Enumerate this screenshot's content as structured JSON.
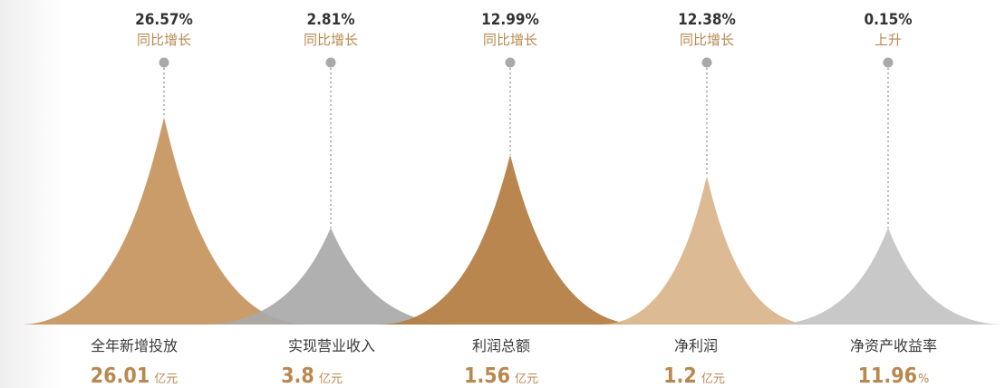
{
  "chart_data": {
    "type": "area",
    "colors": {
      "gold": "#c5955e",
      "gray": "#aaaaaa",
      "bronze": "#b47d42",
      "lightgold": "#d9b68c",
      "lightgray": "#c4c4c4",
      "dark_text": "#333333",
      "accent_text": "#b8884f",
      "dot": "#a9a9a9",
      "label_text": "#3a3a3a"
    },
    "items": [
      {
        "label": "全年新增投放",
        "value": "26.01",
        "unit": "亿元",
        "change": "26.57%",
        "change_text": "同比增长",
        "fill": "gold",
        "peak": 0.88
      },
      {
        "label": "实现营业收入",
        "value": "3.8",
        "unit": "亿元",
        "change": "2.81%",
        "change_text": "同比增长",
        "fill": "gray",
        "peak": 0.41
      },
      {
        "label": "利润总额",
        "value": "1.56",
        "unit": "亿元",
        "change": "12.99%",
        "change_text": "同比增长",
        "fill": "bronze",
        "peak": 0.72
      },
      {
        "label": "净利润",
        "value": "1.2",
        "unit": "亿元",
        "change": "12.38%",
        "change_text": "同比增长",
        "fill": "lightgold",
        "peak": 0.63
      },
      {
        "label": "净资产收益率",
        "value": "11.96",
        "unit": "%",
        "change": "0.15%",
        "change_text": "上升",
        "fill": "lightgray",
        "peak": 0.41
      }
    ]
  }
}
